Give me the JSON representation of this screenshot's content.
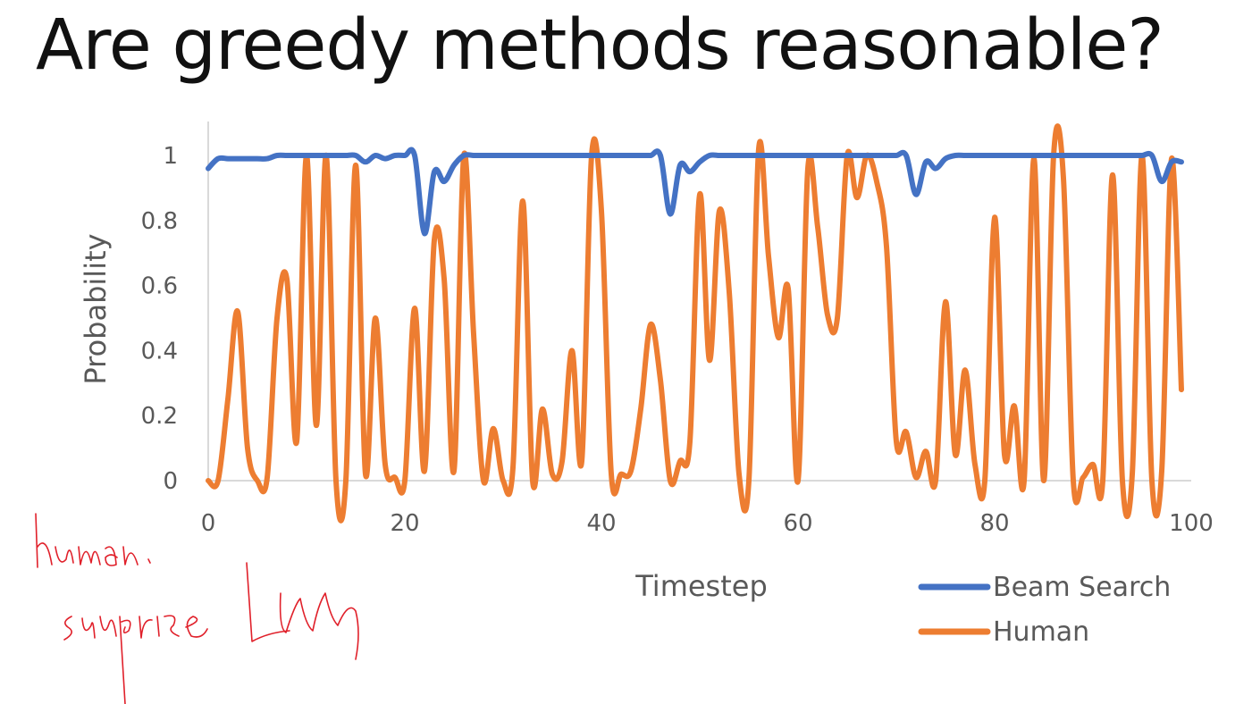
{
  "slide": {
    "title": "Are greedy methods reasonable?"
  },
  "colors": {
    "beam": "#4472C4",
    "human": "#ED7D31",
    "ink": "#E0202A"
  },
  "chart_data": {
    "type": "line",
    "title": "",
    "xlabel": "Timestep",
    "ylabel": "Probability",
    "xlim": [
      0,
      100
    ],
    "ylim": [
      0,
      1
    ],
    "xticks": [
      0,
      20,
      40,
      60,
      80,
      100
    ],
    "yticks": [
      0,
      0.2,
      0.4,
      0.6,
      0.8,
      1
    ],
    "ytick_labels": [
      "0",
      "0.2",
      "0.4",
      "0.6",
      "0.8",
      "1"
    ],
    "grid": false,
    "legend": "bottom-right",
    "x": [
      0,
      1,
      2,
      3,
      4,
      5,
      6,
      7,
      8,
      9,
      10,
      11,
      12,
      13,
      14,
      15,
      16,
      17,
      18,
      19,
      20,
      21,
      22,
      23,
      24,
      25,
      26,
      27,
      28,
      29,
      30,
      31,
      32,
      33,
      34,
      35,
      36,
      37,
      38,
      39,
      40,
      41,
      42,
      43,
      44,
      45,
      46,
      47,
      48,
      49,
      50,
      51,
      52,
      53,
      54,
      55,
      56,
      57,
      58,
      59,
      60,
      61,
      62,
      63,
      64,
      65,
      66,
      67,
      68,
      69,
      70,
      71,
      72,
      73,
      74,
      75,
      76,
      77,
      78,
      79,
      80,
      81,
      82,
      83,
      84,
      85,
      86,
      87,
      88,
      89,
      90,
      91,
      92,
      93,
      94,
      95,
      96,
      97,
      98,
      99
    ],
    "series": [
      {
        "name": "Beam Search",
        "values": [
          0.96,
          0.99,
          0.99,
          0.99,
          0.99,
          0.99,
          0.99,
          1.0,
          1.0,
          1.0,
          1.0,
          1.0,
          1.0,
          1.0,
          1.0,
          1.0,
          0.98,
          1.0,
          0.99,
          1.0,
          1.0,
          1.0,
          0.76,
          0.95,
          0.92,
          0.97,
          1.0,
          1.0,
          1.0,
          1.0,
          1.0,
          1.0,
          1.0,
          1.0,
          1.0,
          1.0,
          1.0,
          1.0,
          1.0,
          1.0,
          1.0,
          1.0,
          1.0,
          1.0,
          1.0,
          1.0,
          1.0,
          0.82,
          0.97,
          0.95,
          0.98,
          1.0,
          1.0,
          1.0,
          1.0,
          1.0,
          1.0,
          1.0,
          1.0,
          1.0,
          1.0,
          1.0,
          1.0,
          1.0,
          1.0,
          1.0,
          1.0,
          1.0,
          1.0,
          1.0,
          1.0,
          1.0,
          0.88,
          0.98,
          0.96,
          0.99,
          1.0,
          1.0,
          1.0,
          1.0,
          1.0,
          1.0,
          1.0,
          1.0,
          1.0,
          1.0,
          1.0,
          1.0,
          1.0,
          1.0,
          1.0,
          1.0,
          1.0,
          1.0,
          1.0,
          1.0,
          1.0,
          0.92,
          0.98,
          0.98
        ]
      },
      {
        "name": "Human",
        "values": [
          0.0,
          0.0,
          0.25,
          0.52,
          0.1,
          0.0,
          0.01,
          0.5,
          0.62,
          0.12,
          1.0,
          0.17,
          1.0,
          0.0,
          0.0,
          0.97,
          0.02,
          0.5,
          0.05,
          0.01,
          0.0,
          0.53,
          0.03,
          0.74,
          0.62,
          0.03,
          1.0,
          0.45,
          0.0,
          0.16,
          0.0,
          0.04,
          0.86,
          0.0,
          0.22,
          0.02,
          0.06,
          0.4,
          0.06,
          1.0,
          0.83,
          0.02,
          0.02,
          0.03,
          0.22,
          0.48,
          0.31,
          0.0,
          0.06,
          0.12,
          0.88,
          0.37,
          0.83,
          0.58,
          0.02,
          0.0,
          1.02,
          0.69,
          0.44,
          0.59,
          0.0,
          0.96,
          0.78,
          0.51,
          0.5,
          1.0,
          0.87,
          1.0,
          0.92,
          0.72,
          0.12,
          0.15,
          0.01,
          0.09,
          0.0,
          0.55,
          0.08,
          0.34,
          0.05,
          0.0,
          0.81,
          0.08,
          0.23,
          0.0,
          0.99,
          0.0,
          1.0,
          0.93,
          0.0,
          0.01,
          0.05,
          0.0,
          0.94,
          0.0,
          0.02,
          1.0,
          0.0,
          0.03,
          0.99,
          0.28
        ]
      }
    ]
  }
}
